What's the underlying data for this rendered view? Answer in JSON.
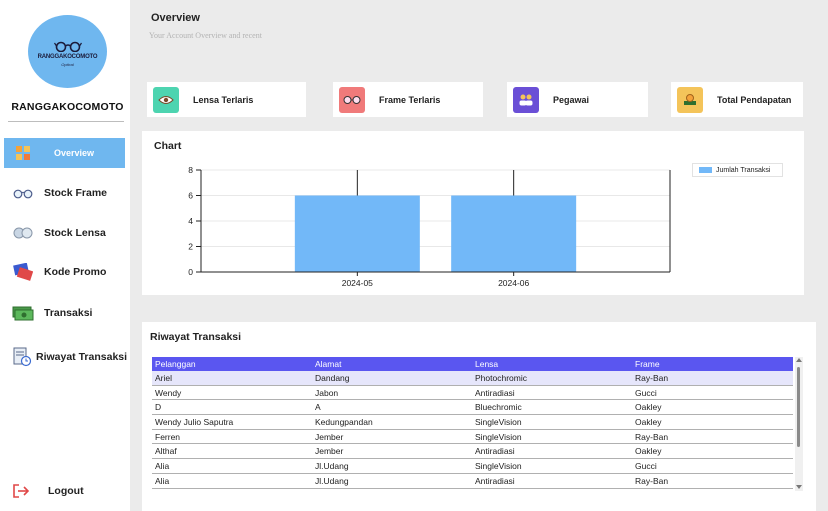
{
  "sidebar": {
    "logo_text": "RANGGAKOCOMOTO",
    "logo_sub": "Optical",
    "brand": "RANGGAKOCOMOTO",
    "items": [
      {
        "label": "Overview",
        "icon": "grid-icon"
      },
      {
        "label": "Stock Frame",
        "icon": "glasses-icon"
      },
      {
        "label": "Stock Lensa",
        "icon": "lens-icon"
      },
      {
        "label": "Kode Promo",
        "icon": "ticket-icon"
      },
      {
        "label": "Transaksi",
        "icon": "money-icon"
      },
      {
        "label": "Riwayat Transaksi",
        "icon": "history-icon"
      }
    ],
    "logout": "Logout"
  },
  "header": {
    "title": "Overview",
    "subtitle": "Your Account Overview and recent"
  },
  "cards": [
    {
      "label": "Lensa Terlaris",
      "icon": "eye-icon",
      "color": "#4dd4b0"
    },
    {
      "label": "Frame Terlaris",
      "icon": "glasses-icon",
      "color": "#f07a7a"
    },
    {
      "label": "Pegawai",
      "icon": "people-icon",
      "color": "#6a4fd6"
    },
    {
      "label": "Total Pendapatan",
      "icon": "coins-icon",
      "color": "#f4c45a"
    }
  ],
  "chart_panel": {
    "title": "Chart"
  },
  "chart_data": {
    "type": "bar",
    "categories": [
      "2024-05",
      "2024-06"
    ],
    "series": [
      {
        "name": "Jumlah Transaksi",
        "values": [
          6,
          6
        ]
      }
    ],
    "ylim": [
      0,
      8
    ],
    "yticks": [
      "0",
      "2",
      "4",
      "6",
      "8"
    ],
    "error_top": [
      8,
      8
    ],
    "legend_position": "top-right",
    "bar_color": "#72b8f8"
  },
  "history": {
    "title": "Riwayat Transaksi",
    "columns": [
      "Pelanggan",
      "Alamat",
      "Lensa",
      "Frame"
    ],
    "rows": [
      [
        "Ariel",
        "Dandang",
        "Photochromic",
        "Ray-Ban"
      ],
      [
        "Wendy",
        "Jabon",
        "Antiradiasi",
        "Gucci"
      ],
      [
        "D",
        "A",
        "Bluechromic",
        "Oakley"
      ],
      [
        "Wendy Julio Saputra",
        "Kedungpandan",
        "SingleVision",
        "Oakley"
      ],
      [
        "Ferren",
        "Jember",
        "SingleVision",
        "Ray-Ban"
      ],
      [
        "Althaf",
        "Jember",
        "Antiradiasi",
        "Oakley"
      ],
      [
        "Alia",
        "Jl.Udang",
        "SingleVision",
        "Gucci"
      ],
      [
        "Alia",
        "Jl.Udang",
        "Antiradiasi",
        "Ray-Ban"
      ]
    ]
  }
}
